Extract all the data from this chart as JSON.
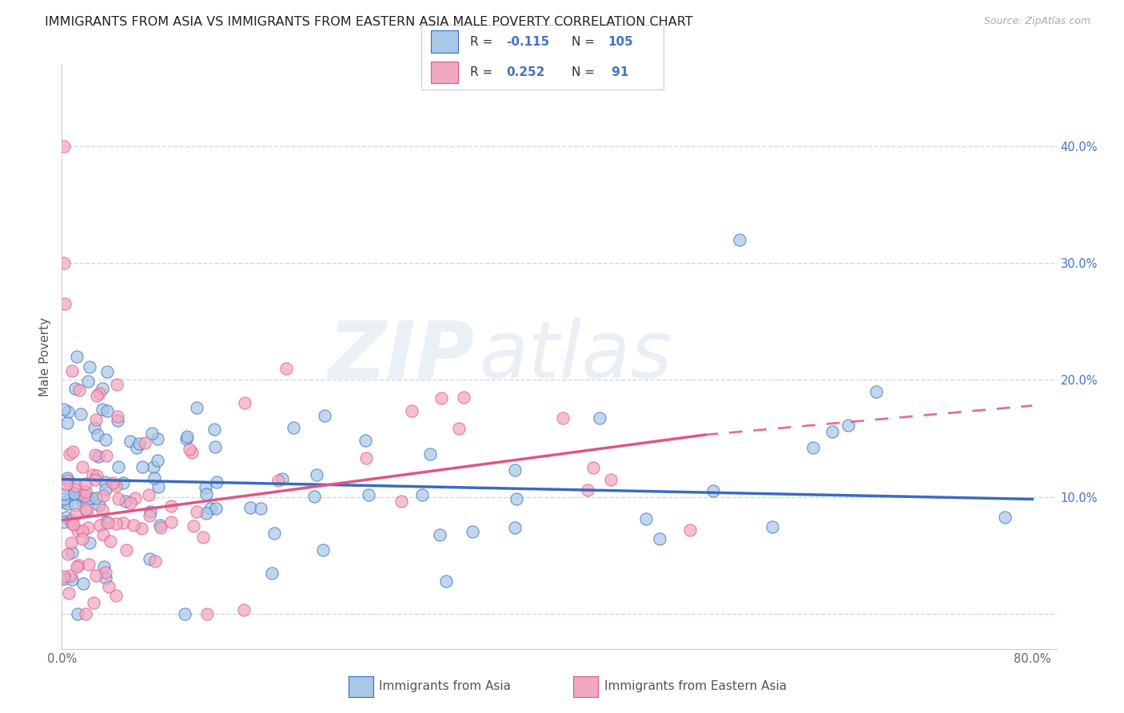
{
  "title": "IMMIGRANTS FROM ASIA VS IMMIGRANTS FROM EASTERN ASIA MALE POVERTY CORRELATION CHART",
  "source": "Source: ZipAtlas.com",
  "ylabel": "Male Poverty",
  "xlim": [
    0.0,
    0.82
  ],
  "ylim": [
    -0.03,
    0.47
  ],
  "yticks": [
    0.0,
    0.1,
    0.2,
    0.3,
    0.4
  ],
  "ytick_labels": [
    "",
    "10.0%",
    "20.0%",
    "30.0%",
    "40.0%"
  ],
  "xticks": [
    0.0,
    0.2,
    0.4,
    0.6,
    0.8
  ],
  "xtick_labels": [
    "0.0%",
    "",
    "",
    "",
    "80.0%"
  ],
  "series1_color": "#a8c8e8",
  "series2_color": "#f0a8c0",
  "trend1_color": "#3a6bbf",
  "trend2_color": "#e05585",
  "r1": -0.115,
  "n1": 105,
  "r2": 0.252,
  "n2": 91,
  "trend1_y0": 0.115,
  "trend1_y1": 0.098,
  "trend2_y0": 0.08,
  "trend2_y1_solid": 0.153,
  "trend2_x_solid_end": 0.53,
  "trend2_y1_dash": 0.178,
  "watermark_zip": "ZIP",
  "watermark_atlas": "atlas",
  "background_color": "#ffffff",
  "grid_color": "#d0d8e8",
  "title_fontsize": 11.5,
  "label_fontsize": 11,
  "tick_fontsize": 10.5,
  "right_tick_color": "#4472c4",
  "seed": 99
}
